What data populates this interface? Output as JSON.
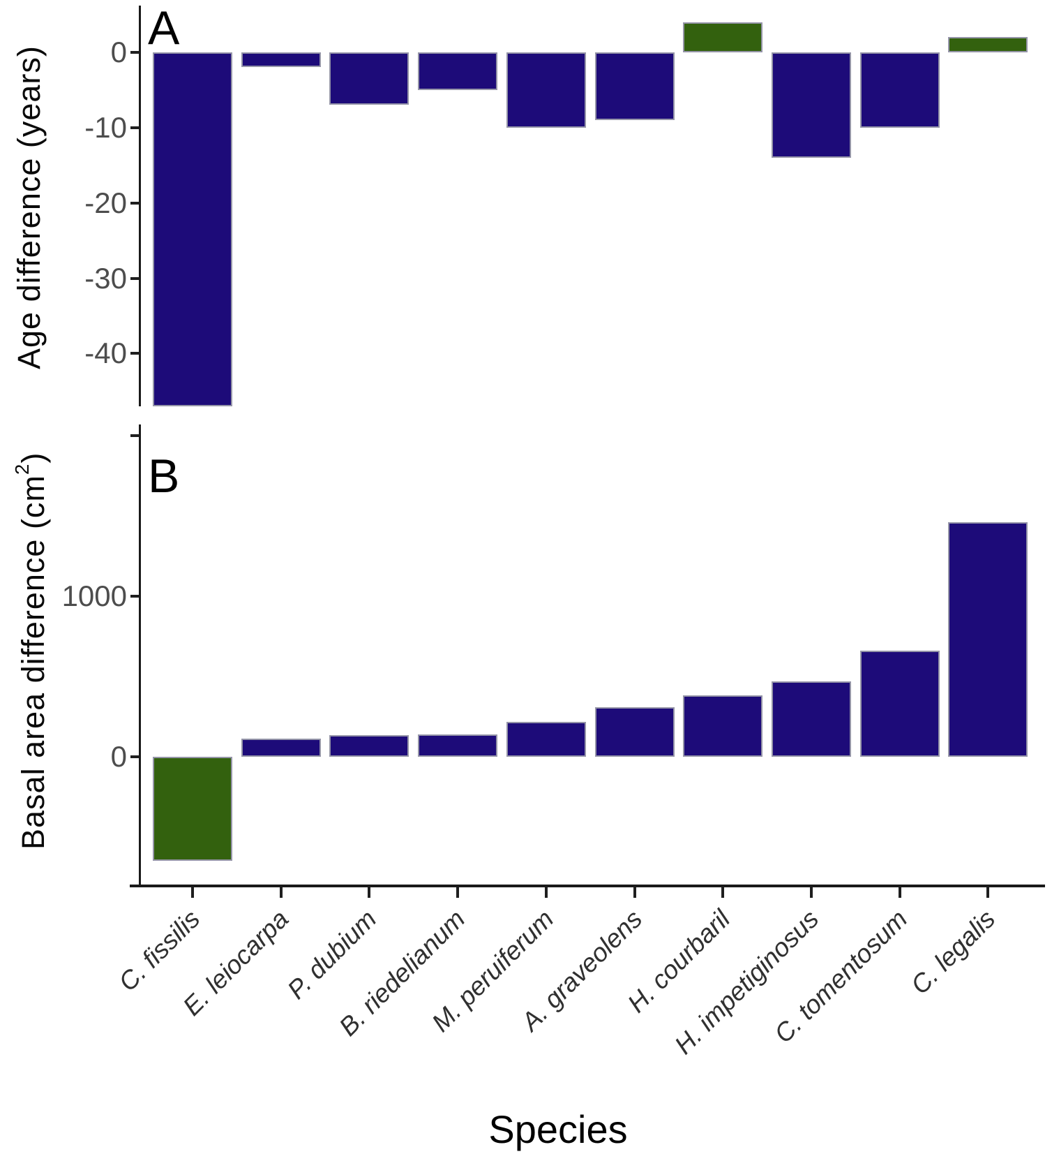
{
  "figure": {
    "panel_a": {
      "letter": "A",
      "y_axis_title": "Age difference (years)"
    },
    "panel_b": {
      "letter": "B",
      "y_axis_title_prefix": "Basal area difference (cm",
      "y_axis_title_sup": "2",
      "y_axis_title_suffix": ")"
    },
    "x_axis_title": "Species",
    "colors": {
      "navy": "#1d0b79",
      "green": "#33610e",
      "axis": "#1a1a1a",
      "tick_text": "#4d4d4d",
      "species_text": "#303030"
    }
  },
  "chart_data": [
    {
      "type": "bar",
      "panel": "A",
      "title": "Age difference by species",
      "categories": [
        "C. fissilis",
        "E. leiocarpa",
        "P. dubium",
        "B. riedelianum",
        "M. peruiferum",
        "A. graveolens",
        "H. courbaril",
        "H. impetiginosus",
        "C. tomentosum",
        "C. legalis"
      ],
      "values": [
        -47,
        -2,
        -7,
        -5,
        -10,
        -9,
        4,
        -14,
        -10,
        2
      ],
      "bar_colors": [
        "navy",
        "navy",
        "navy",
        "navy",
        "navy",
        "navy",
        "green",
        "navy",
        "navy",
        "green"
      ],
      "xlabel": "Species",
      "ylabel": "Age difference (years)",
      "ylim": [
        -47,
        6.2
      ],
      "y_ticks": [
        0,
        -10,
        -20,
        -30,
        -40
      ],
      "y_ticks_unlabeled": [],
      "grid": "off",
      "legend": "none"
    },
    {
      "type": "bar",
      "panel": "B",
      "title": "Basal area difference by species",
      "categories": [
        "C. fissilis",
        "E. leiocarpa",
        "P. dubium",
        "B. riedelianum",
        "M. peruiferum",
        "A. graveolens",
        "H. courbaril",
        "H. impetiginosus",
        "C. tomentosum",
        "C. legalis"
      ],
      "values": [
        -645,
        115,
        135,
        140,
        220,
        310,
        385,
        470,
        660,
        1460
      ],
      "bar_colors": [
        "green",
        "navy",
        "navy",
        "navy",
        "navy",
        "navy",
        "navy",
        "navy",
        "navy",
        "navy"
      ],
      "xlabel": "Species",
      "ylabel": "Basal area difference (cm2)",
      "ylim": [
        -808,
        2070
      ],
      "y_ticks": [
        1000,
        0
      ],
      "y_ticks_unlabeled": [
        2000
      ],
      "grid": "off",
      "legend": "none"
    }
  ]
}
